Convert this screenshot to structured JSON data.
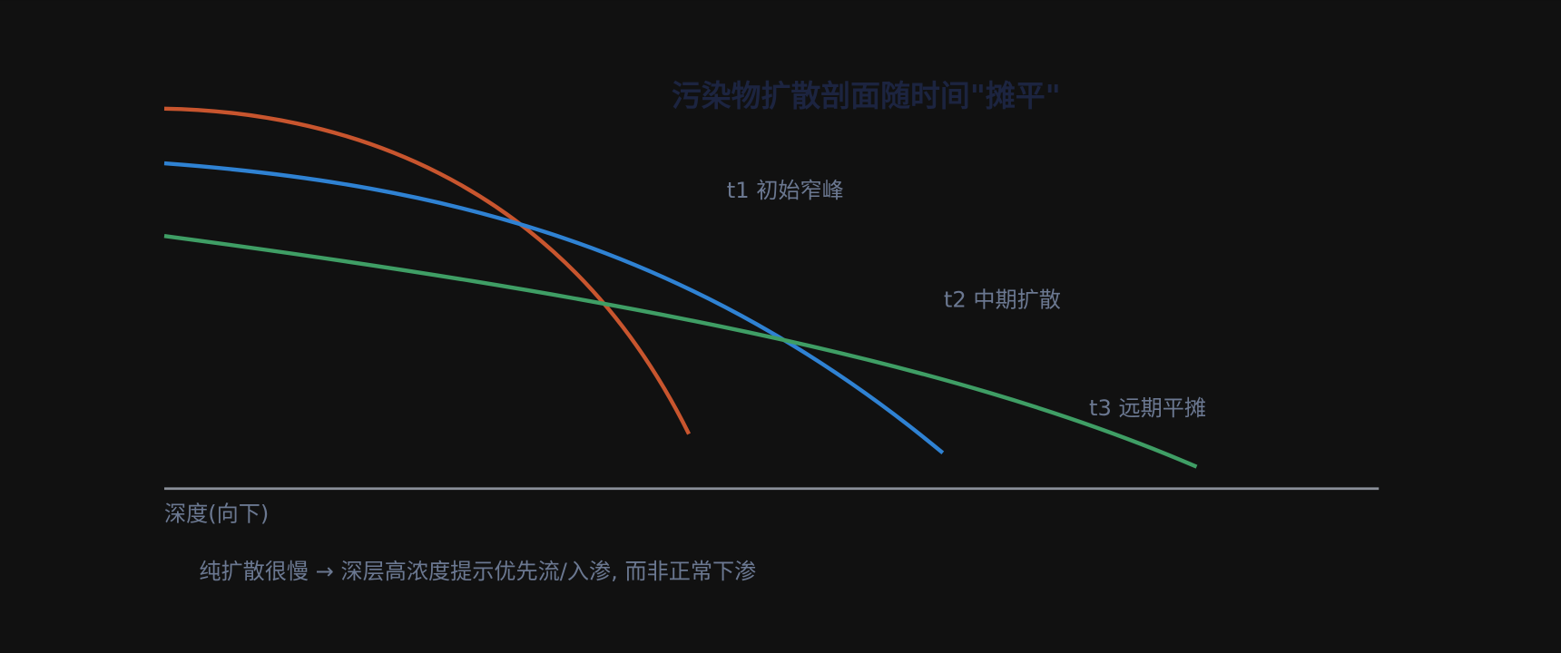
{
  "title": "污染物扩散剖面随时间\"摊平\"",
  "curve_labels": [
    "t1 初始窄峰",
    "t2 中期扩散",
    "t3 远期平摊"
  ],
  "axis_label": "深度(向下)",
  "note": "纯扩散很慢 → 深层高浓度提示优先流/入渗, 而非正常下渗"
}
